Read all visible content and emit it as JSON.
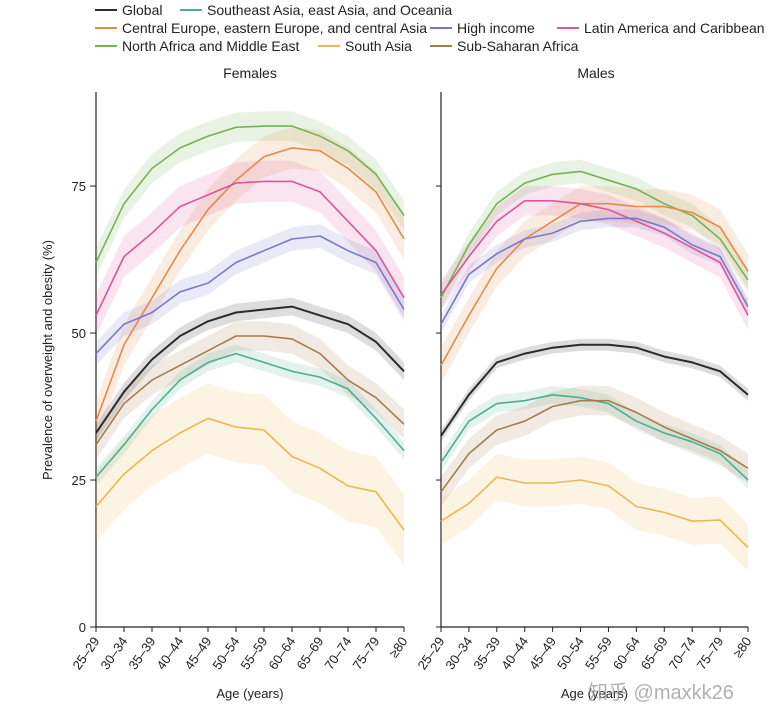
{
  "chart_data": {
    "type": "line",
    "ylabel": "Prevalence of overweight and obesity (%)",
    "xlabel": "Age (years)",
    "ylim": [
      0,
      91
    ],
    "yticks": [
      0,
      25,
      50,
      75
    ],
    "categories": [
      "25–29",
      "30–34",
      "35–39",
      "40–44",
      "45–49",
      "50–54",
      "55–59",
      "60–64",
      "65–69",
      "70–74",
      "75–79",
      "≥80"
    ],
    "legend": [
      {
        "key": "global",
        "label": "Global",
        "color": "#2b2b2b"
      },
      {
        "key": "sea",
        "label": "Southeast Asia, east Asia, and Oceania",
        "color": "#4fae8f"
      },
      {
        "key": "ceeca",
        "label": "Central Europe, eastern Europe, and central Asia",
        "color": "#e8894a"
      },
      {
        "key": "hi",
        "label": "High income",
        "color": "#7b78c9"
      },
      {
        "key": "lac",
        "label": "Latin America and Caribbean",
        "color": "#d9579a"
      },
      {
        "key": "nafme",
        "label": "North Africa and Middle East",
        "color": "#76b356"
      },
      {
        "key": "sa",
        "label": "South Asia",
        "color": "#eab752"
      },
      {
        "key": "ssa",
        "label": "Sub-Saharan Africa",
        "color": "#a57c4a"
      }
    ],
    "panels": [
      {
        "title": "Females",
        "series": [
          {
            "key": "nafme",
            "values": [
              62,
              72,
              78,
              81.5,
              83.5,
              85,
              85.2,
              85.2,
              83.5,
              81,
              77,
              70
            ],
            "band": 2.5
          },
          {
            "key": "ceeca",
            "values": [
              35,
              48,
              56,
              64,
              71,
              76,
              80,
              81.5,
              81,
              78,
              74,
              66
            ],
            "band": 3.5
          },
          {
            "key": "lac",
            "values": [
              53,
              63,
              67,
              71.5,
              73.5,
              75.5,
              75.8,
              75.8,
              74,
              69,
              64,
              56
            ],
            "band": 3.5
          },
          {
            "key": "hi",
            "values": [
              46.5,
              51.5,
              53.5,
              57,
              58.5,
              62,
              64,
              66,
              66.5,
              64,
              62,
              54
            ],
            "band": 2
          },
          {
            "key": "global",
            "values": [
              33,
              40,
              45.5,
              49.5,
              52,
              53.5,
              54,
              54.5,
              53,
              51.5,
              48.5,
              43.5
            ],
            "band": 1.5
          },
          {
            "key": "ssa",
            "values": [
              31,
              38,
              42,
              44.5,
              47,
              49.5,
              49.5,
              49,
              46.5,
              42,
              39,
              34.5
            ],
            "band": 2.5
          },
          {
            "key": "sea",
            "values": [
              25.5,
              31,
              37,
              42,
              45,
              46.5,
              45,
              43.5,
              42.5,
              40.5,
              35.5,
              30
            ],
            "band": 1.5
          },
          {
            "key": "sa",
            "values": [
              20.5,
              26,
              30,
              33,
              35.5,
              34,
              33.5,
              29,
              27,
              24,
              23,
              16.5
            ],
            "band": 6
          }
        ]
      },
      {
        "title": "Males",
        "series": [
          {
            "key": "nafme",
            "values": [
              56,
              65,
              72,
              75.5,
              77,
              77.5,
              76,
              74.5,
              72,
              70,
              66,
              59
            ],
            "band": 2
          },
          {
            "key": "ceeca",
            "values": [
              44.5,
              53,
              61,
              66,
              69,
              72,
              72,
              71.5,
              71.5,
              70.5,
              68,
              60.5
            ],
            "band": 3
          },
          {
            "key": "lac",
            "values": [
              56.5,
              63,
              69,
              72.5,
              72.5,
              72,
              71,
              69,
              67,
              64.5,
              62,
              53
            ],
            "band": 2.5
          },
          {
            "key": "hi",
            "values": [
              51.5,
              60,
              63.5,
              66,
              67,
              69,
              69.5,
              69.5,
              68,
              65,
              63,
              54.5
            ],
            "band": 1.5
          },
          {
            "key": "global",
            "values": [
              32.5,
              39.5,
              45,
              46.5,
              47.5,
              48,
              48,
              47.5,
              46,
              45,
              43.5,
              39.5
            ],
            "band": 1
          },
          {
            "key": "sea",
            "values": [
              28,
              35,
              38,
              38.5,
              39.5,
              39,
              38,
              35,
              33,
              31.5,
              29.5,
              25
            ],
            "band": 1.5
          },
          {
            "key": "ssa",
            "values": [
              23,
              29.5,
              33.5,
              35,
              37.5,
              38.5,
              38.5,
              36.5,
              34,
              32,
              30,
              27
            ],
            "band": 2.5
          },
          {
            "key": "sa",
            "values": [
              18,
              21,
              25.5,
              24.5,
              24.5,
              25,
              24,
              20.5,
              19.5,
              18,
              18.2,
              13.5
            ],
            "band": 4
          }
        ]
      }
    ]
  },
  "watermark": "知乎 @maxkk26"
}
